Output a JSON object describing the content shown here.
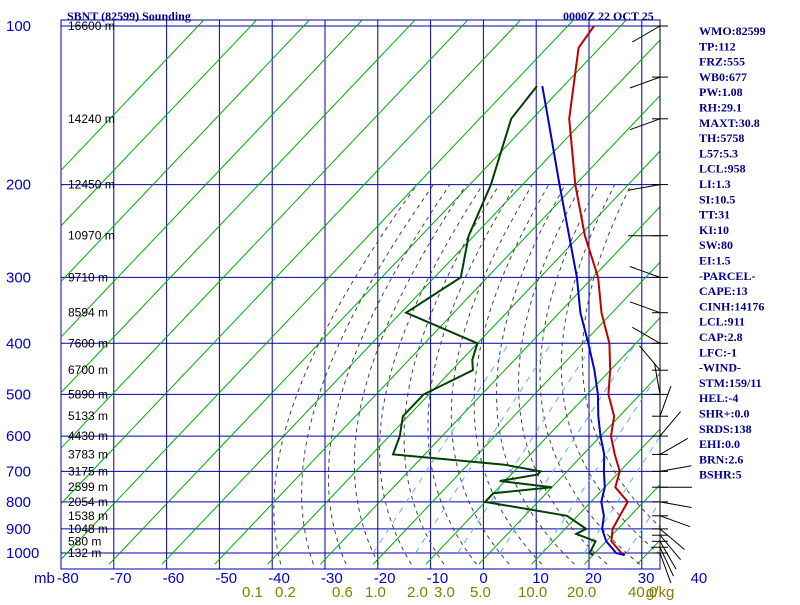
{
  "header": {
    "station": "SBNT (82599) Sounding",
    "time": "0000Z 22 OCT 25"
  },
  "colors": {
    "grid": "#0000aa",
    "temperature": "#c00000",
    "dewpoint": "#004000",
    "parcel": "#0000cd",
    "dry_adiabat": "#00aa00",
    "moist_adiabat": "#444444",
    "mixing_ratio": "#66aaff",
    "text": "#00008b"
  },
  "chart_data": {
    "type": "line",
    "title": "SBNT (82599) Sounding",
    "subtitle": "0000Z 22 OCT 25",
    "pressure_levels_mb": [
      100,
      200,
      300,
      400,
      500,
      600,
      700,
      800,
      900,
      1000
    ],
    "pressure_labels": [
      "100",
      "200",
      "300",
      "400",
      "500",
      "600",
      "700",
      "800",
      "900",
      "1000"
    ],
    "pressure_axis_label": "mb",
    "height_labels": [
      {
        "p": 100,
        "text": "16600 m"
      },
      {
        "p": 150,
        "text": "14240 m"
      },
      {
        "p": 200,
        "text": "12450 m"
      },
      {
        "p": 250,
        "text": "10970 m"
      },
      {
        "p": 300,
        "text": "9710 m"
      },
      {
        "p": 350,
        "text": "8594 m"
      },
      {
        "p": 400,
        "text": "7600 m"
      },
      {
        "p": 450,
        "text": "6700 m"
      },
      {
        "p": 500,
        "text": "5890 m"
      },
      {
        "p": 550,
        "text": "5133 m"
      },
      {
        "p": 600,
        "text": "4430 m"
      },
      {
        "p": 650,
        "text": "3783 m"
      },
      {
        "p": 700,
        "text": "3175 m"
      },
      {
        "p": 750,
        "text": "2599 m"
      },
      {
        "p": 800,
        "text": "2054 m"
      },
      {
        "p": 850,
        "text": "1538 m"
      },
      {
        "p": 900,
        "text": "1048 m"
      },
      {
        "p": 950,
        "text": "580 m"
      },
      {
        "p": 1000,
        "text": "132 m"
      }
    ],
    "temperature_ticks_c": [
      -80,
      -70,
      -60,
      -50,
      -40,
      -30,
      -20,
      -10,
      0,
      10,
      20,
      30,
      40
    ],
    "temperature_tick_labels": [
      "-80",
      "-70",
      "-60",
      "-50",
      "-40",
      "-30",
      "-20",
      "-10",
      "0",
      "10",
      "20",
      "30",
      "40"
    ],
    "mixing_ratio_labels": [
      "0.1",
      "0.2",
      "0.6",
      "1.0",
      "2.0",
      "3.0",
      "5.0",
      "10.0",
      "20.0",
      "40.0",
      "g/kg"
    ],
    "ylim_mb": [
      100,
      1050
    ],
    "xlim_c": [
      -80,
      40
    ],
    "y_scale": "log-pressure",
    "grid": true,
    "series": [
      {
        "key": "temperature",
        "points": [
          [
            1009,
            26
          ],
          [
            1000,
            25
          ],
          [
            950,
            21
          ],
          [
            900,
            19
          ],
          [
            850,
            18
          ],
          [
            800,
            17
          ],
          [
            750,
            12
          ],
          [
            700,
            10
          ],
          [
            650,
            6
          ],
          [
            600,
            2
          ],
          [
            550,
            -1
          ],
          [
            500,
            -6
          ],
          [
            450,
            -10
          ],
          [
            400,
            -15
          ],
          [
            350,
            -22
          ],
          [
            300,
            -29
          ],
          [
            250,
            -39
          ],
          [
            200,
            -50
          ],
          [
            150,
            -63
          ],
          [
            110,
            -74
          ],
          [
            100,
            -75
          ]
        ]
      },
      {
        "key": "dewpoint",
        "points": [
          [
            1009,
            20
          ],
          [
            1000,
            19
          ],
          [
            950,
            18
          ],
          [
            920,
            13
          ],
          [
            900,
            14
          ],
          [
            850,
            8
          ],
          [
            800,
            -10
          ],
          [
            770,
            -10
          ],
          [
            750,
            0
          ],
          [
            730,
            -11
          ],
          [
            710,
            -5
          ],
          [
            700,
            -5
          ],
          [
            680,
            -13
          ],
          [
            650,
            -36
          ],
          [
            600,
            -38
          ],
          [
            550,
            -41
          ],
          [
            500,
            -41
          ],
          [
            450,
            -36
          ],
          [
            430,
            -38
          ],
          [
            400,
            -40
          ],
          [
            350,
            -59
          ],
          [
            300,
            -55
          ],
          [
            250,
            -61
          ],
          [
            200,
            -66
          ],
          [
            150,
            -74
          ],
          [
            130,
            -75
          ]
        ]
      },
      {
        "key": "parcel",
        "points": [
          [
            1009,
            26
          ],
          [
            1000,
            24
          ],
          [
            950,
            20
          ],
          [
            900,
            17
          ],
          [
            850,
            15
          ],
          [
            800,
            12
          ],
          [
            750,
            10
          ],
          [
            700,
            7
          ],
          [
            650,
            4
          ],
          [
            600,
            0
          ],
          [
            550,
            -4
          ],
          [
            500,
            -8
          ],
          [
            450,
            -13
          ],
          [
            400,
            -19
          ],
          [
            350,
            -26
          ],
          [
            300,
            -33
          ],
          [
            250,
            -42
          ],
          [
            200,
            -53
          ],
          [
            150,
            -67
          ],
          [
            130,
            -74
          ]
        ]
      }
    ],
    "wind_barbs": [
      {
        "p": 1000,
        "dir": 160,
        "spd": 10
      },
      {
        "p": 975,
        "dir": 155,
        "spd": 10
      },
      {
        "p": 950,
        "dir": 150,
        "spd": 15
      },
      {
        "p": 925,
        "dir": 140,
        "spd": 15
      },
      {
        "p": 900,
        "dir": 130,
        "spd": 10
      },
      {
        "p": 850,
        "dir": 110,
        "spd": 10
      },
      {
        "p": 800,
        "dir": 100,
        "spd": 5
      },
      {
        "p": 750,
        "dir": 90,
        "spd": 5
      },
      {
        "p": 700,
        "dir": 80,
        "spd": 5
      },
      {
        "p": 650,
        "dir": 60,
        "spd": 5
      },
      {
        "p": 600,
        "dir": 40,
        "spd": 5
      },
      {
        "p": 550,
        "dir": 20,
        "spd": 5
      },
      {
        "p": 500,
        "dir": 350,
        "spd": 5
      },
      {
        "p": 450,
        "dir": 320,
        "spd": 5
      },
      {
        "p": 400,
        "dir": 300,
        "spd": 10
      },
      {
        "p": 350,
        "dir": 290,
        "spd": 15
      },
      {
        "p": 300,
        "dir": 290,
        "spd": 20
      },
      {
        "p": 250,
        "dir": 270,
        "spd": 20
      },
      {
        "p": 200,
        "dir": 260,
        "spd": 20
      },
      {
        "p": 150,
        "dir": 250,
        "spd": 25
      },
      {
        "p": 125,
        "dir": 250,
        "spd": 25
      },
      {
        "p": 100,
        "dir": 240,
        "spd": 30
      }
    ]
  },
  "indices": [
    "WMO:82599",
    "TP:112",
    "FRZ:555",
    "WB0:677",
    "PW:1.08",
    "RH:29.1",
    "MAXT:30.8",
    "TH:5758",
    "L57:5.3",
    "LCL:958",
    "LI:1.3",
    "SI:10.5",
    "TT:31",
    "KI:10",
    "SW:80",
    "EI:1.5",
    "-PARCEL-",
    "CAPE:13",
    "CINH:14176",
    "LCL:911",
    "CAP:2.8",
    "LFC:-1",
    "-WIND-",
    "STM:159/11",
    "HEL:-4",
    "SHR+:0.0",
    "SRDS:138",
    "EHI:0.0",
    "BRN:2.6",
    "BSHR:5"
  ]
}
